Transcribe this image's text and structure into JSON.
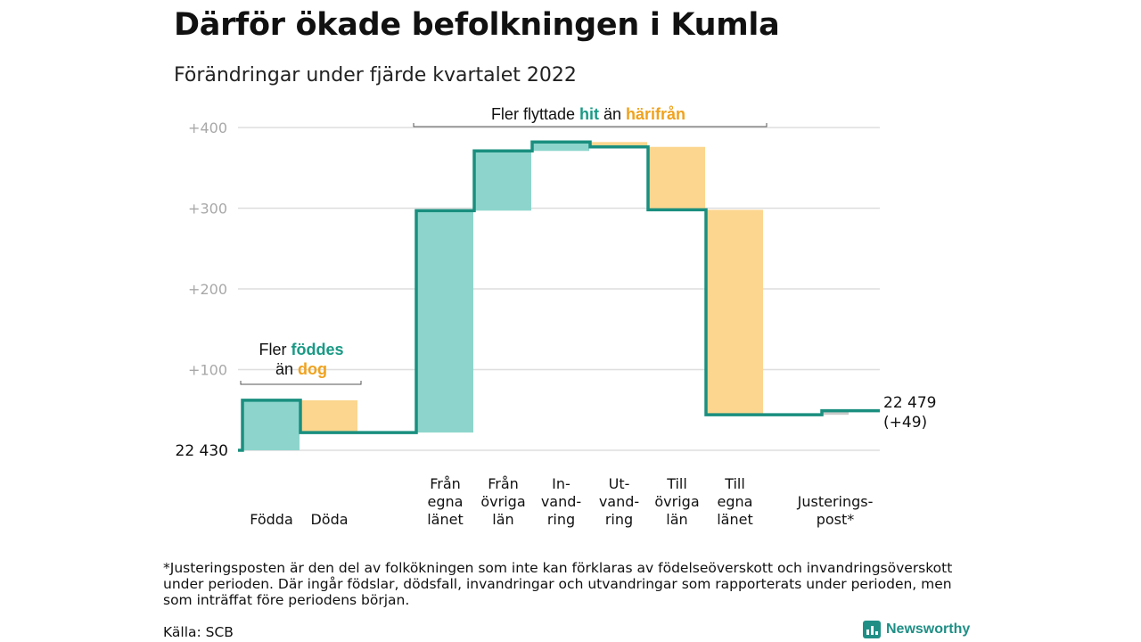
{
  "title": "Därför ökade befolkningen i Kumla",
  "subtitle": "Förändringar under fjärde kvartalet 2022",
  "colors": {
    "increase": "#8dd5cc",
    "decrease": "#fcd68f",
    "adjustment": "#c9c9c9",
    "line": "#1a8f7f",
    "hit": "#1a9a85",
    "harifran": "#f0a21d",
    "grid": "#dedede",
    "tick": "#a8a8a8"
  },
  "chart_data": {
    "type": "bar",
    "subtype": "waterfall",
    "start": {
      "label": "22 430",
      "value": 0
    },
    "end": {
      "label": "22 479",
      "change_label": "(+49)",
      "value": 49
    },
    "ylim": [
      0,
      400
    ],
    "yticks": [
      {
        "value": 400,
        "label": "+400"
      },
      {
        "value": 300,
        "label": "+300"
      },
      {
        "value": 200,
        "label": "+200"
      },
      {
        "value": 100,
        "label": "+100"
      }
    ],
    "grid": true,
    "bars": [
      {
        "lines": [
          "Födda"
        ],
        "from": 0,
        "to": 62,
        "kind": "increase"
      },
      {
        "lines": [
          "Döda"
        ],
        "from": 62,
        "to": 22,
        "kind": "decrease"
      },
      {
        "lines": [
          "Från",
          "egna",
          "länet"
        ],
        "from": 22,
        "to": 297,
        "kind": "increase"
      },
      {
        "lines": [
          "Från",
          "övriga",
          "län"
        ],
        "from": 297,
        "to": 371,
        "kind": "increase"
      },
      {
        "lines": [
          "In-",
          "vand-",
          "ring"
        ],
        "from": 371,
        "to": 382,
        "kind": "increase"
      },
      {
        "lines": [
          "Ut-",
          "vand-",
          "ring"
        ],
        "from": 382,
        "to": 376,
        "kind": "decrease"
      },
      {
        "lines": [
          "Till",
          "övriga",
          "län"
        ],
        "from": 376,
        "to": 298,
        "kind": "decrease"
      },
      {
        "lines": [
          "Till",
          "egna",
          "länet"
        ],
        "from": 298,
        "to": 44,
        "kind": "decrease"
      },
      {
        "lines": [
          "Justerings-",
          "post*"
        ],
        "from": 44,
        "to": 49,
        "kind": "adjustment"
      }
    ],
    "annotations": {
      "natural": {
        "pre": "Fler ",
        "hit": "föddes",
        "mid": "än ",
        "away": "dog"
      },
      "migration": {
        "pre": "Fler flyttade ",
        "hit": "hit",
        "mid": " än ",
        "away": "härifrån"
      }
    }
  },
  "footnote": "*Justeringsposten är den del av folkökningen som inte kan förklaras av födelseöverskott och invandringsöverskott under perioden. Där ingår födslar, dödsfall, invandringar och utvandringar som rapporterats under perioden, men som inträffat före periodens början.",
  "source": "Källa: SCB",
  "brand": "Newsworthy"
}
